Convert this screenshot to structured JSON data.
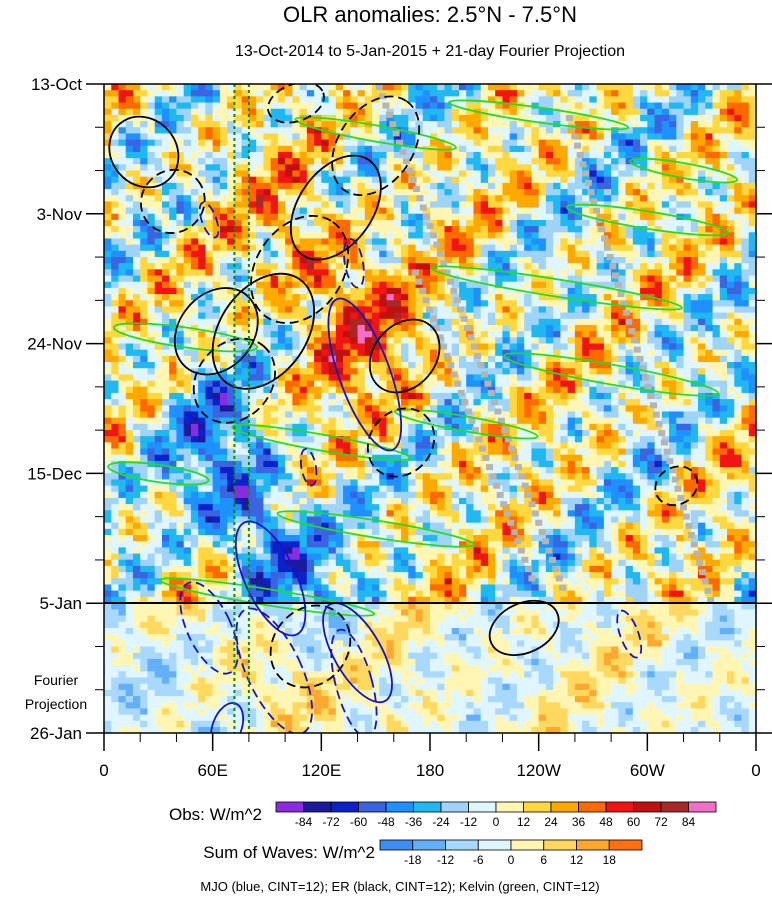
{
  "chart_data": {
    "type": "heatmap",
    "title": "OLR anomalies: 2.5°N - 7.5°N",
    "subtitle": "13-Oct-2014 to 5-Jan-2015 + 21-day Fourier Projection",
    "x_ticks": [
      "0",
      "60E",
      "120E",
      "180",
      "120W",
      "60W",
      "0"
    ],
    "x_tick_longitudes": [
      0,
      60,
      120,
      180,
      240,
      300,
      360
    ],
    "xlim": [
      0,
      360
    ],
    "y_ticks": [
      "13-Oct",
      "3-Nov",
      "24-Nov",
      "15-Dec",
      "5-Jan",
      "26-Jan"
    ],
    "y_tick_days": [
      0,
      21,
      42,
      63,
      84,
      105
    ],
    "ylim_days": [
      0,
      105
    ],
    "projection_start_day": 84,
    "projection_label_line1": "Fourier",
    "projection_label_line2": "Projection",
    "reference_longitudes": [
      72,
      80
    ],
    "obs_colorbar": {
      "label": "Obs: W/m^2",
      "levels": [
        "-84",
        "-72",
        "-60",
        "-48",
        "-36",
        "-24",
        "-12",
        "0",
        "12",
        "24",
        "36",
        "48",
        "60",
        "72",
        "84"
      ],
      "colors": [
        "#8a2be2",
        "#1a1a9a",
        "#0b21c9",
        "#3a64e0",
        "#1e90ff",
        "#1fb8f0",
        "#9fd3f7",
        "#dff5ff",
        "#fff6b4",
        "#ffd840",
        "#ffa800",
        "#ff6a00",
        "#f01414",
        "#c01010",
        "#a82828",
        "#f070c8"
      ]
    },
    "waves_colorbar": {
      "label": "Sum of Waves: W/m^2",
      "levels": [
        "-18",
        "-12",
        "-6",
        "0",
        "6",
        "12",
        "18"
      ],
      "colors": [
        "#3d8ef0",
        "#64b0f8",
        "#a8d8fb",
        "#dff5ff",
        "#fff6b4",
        "#ffd860",
        "#ffa830",
        "#ff7010"
      ]
    },
    "contour_legend": "MJO (blue, CINT=12); ER (black, CINT=12); Kelvin (green, CINT=12)",
    "contour_colors": {
      "mjo": "#1414c8",
      "er": "#000000",
      "kelvin": "#22dd22"
    },
    "mjo_contours": [
      {
        "lon": 144,
        "day": 47,
        "rlon": 14,
        "rday": 13,
        "tilt": -20,
        "dashed": false
      },
      {
        "lon": 140,
        "day": 92,
        "rlon": 13,
        "rday": 9,
        "tilt": -30,
        "dashed": false
      },
      {
        "lon": 58,
        "day": 88,
        "rlon": 12,
        "rday": 8,
        "tilt": -25,
        "dashed": true
      },
      {
        "lon": 94,
        "day": 95,
        "rlon": 15,
        "rday": 11,
        "tilt": -25,
        "dashed": true
      },
      {
        "lon": 92,
        "day": 80,
        "rlon": 14,
        "rday": 10,
        "tilt": -25,
        "dashed": false
      },
      {
        "lon": 138,
        "day": 97,
        "rlon": 10,
        "rday": 9,
        "tilt": -15,
        "dashed": true
      },
      {
        "lon": 290,
        "day": 89,
        "rlon": 5,
        "rday": 4,
        "tilt": -20,
        "dashed": true
      },
      {
        "lon": 68,
        "day": 104,
        "rlon": 8,
        "rday": 4,
        "tilt": 20,
        "dashed": false
      },
      {
        "lon": 113,
        "day": 62,
        "rlon": 4,
        "rday": 3,
        "tilt": -10,
        "dashed": true
      },
      {
        "lon": 138,
        "day": 29,
        "rlon": 5,
        "rday": 4,
        "tilt": -10,
        "dashed": true
      },
      {
        "lon": 58,
        "day": 22,
        "rlon": 4,
        "rday": 3,
        "tilt": -20,
        "dashed": true
      }
    ],
    "er_contours": [
      {
        "lon": 88,
        "day": 40,
        "rlon": 35,
        "rday": 7,
        "tilt": -55,
        "dashed": false
      },
      {
        "lon": 108,
        "day": 30,
        "rlon": 32,
        "rday": 7,
        "tilt": -55,
        "dashed": true
      },
      {
        "lon": 128,
        "day": 20,
        "rlon": 32,
        "rday": 6,
        "tilt": -55,
        "dashed": false
      },
      {
        "lon": 150,
        "day": 10,
        "rlon": 30,
        "rday": 6,
        "tilt": -55,
        "dashed": true
      },
      {
        "lon": 166,
        "day": 44,
        "rlon": 22,
        "rday": 5,
        "tilt": -50,
        "dashed": false
      },
      {
        "lon": 164,
        "day": 58,
        "rlon": 20,
        "rday": 5,
        "tilt": -50,
        "dashed": true
      },
      {
        "lon": 22,
        "day": 11,
        "rlon": 18,
        "rday": 6,
        "tilt": -40,
        "dashed": false
      },
      {
        "lon": 38,
        "day": 19,
        "rlon": 18,
        "rday": 5,
        "tilt": -40,
        "dashed": true
      },
      {
        "lon": 62,
        "day": 40,
        "rlon": 26,
        "rday": 6,
        "tilt": -50,
        "dashed": false
      },
      {
        "lon": 72,
        "day": 48,
        "rlon": 25,
        "rday": 6,
        "tilt": -50,
        "dashed": true
      },
      {
        "lon": 114,
        "day": 91,
        "rlon": 24,
        "rday": 6,
        "tilt": -50,
        "dashed": true
      },
      {
        "lon": 232,
        "day": 88,
        "rlon": 20,
        "rday": 4,
        "tilt": -25,
        "dashed": false
      },
      {
        "lon": 316,
        "day": 65,
        "rlon": 12,
        "rday": 3,
        "tilt": -30,
        "dashed": true
      },
      {
        "lon": 106,
        "day": 3,
        "rlon": 16,
        "rday": 3,
        "tilt": -20,
        "dashed": true
      }
    ],
    "kelvin_contours": [
      {
        "lon": 45,
        "day": 41,
        "rlon": 40,
        "rday": 1.6,
        "tilt": 8,
        "dashed": false
      },
      {
        "lon": 150,
        "day": 8,
        "rlon": 45,
        "rday": 1.3,
        "tilt": 10,
        "dashed": false
      },
      {
        "lon": 250,
        "day": 33,
        "rlon": 70,
        "rday": 1.4,
        "tilt": 9,
        "dashed": false
      },
      {
        "lon": 280,
        "day": 47,
        "rlon": 60,
        "rday": 1.6,
        "tilt": 10,
        "dashed": false
      },
      {
        "lon": 300,
        "day": 22,
        "rlon": 45,
        "rday": 1.4,
        "tilt": 9,
        "dashed": false
      },
      {
        "lon": 150,
        "day": 72,
        "rlon": 55,
        "rday": 1.4,
        "tilt": 9,
        "dashed": false
      },
      {
        "lon": 120,
        "day": 58,
        "rlon": 50,
        "rday": 1.3,
        "tilt": 10,
        "dashed": false
      },
      {
        "lon": 30,
        "day": 63,
        "rlon": 28,
        "rday": 1.4,
        "tilt": 8,
        "dashed": false
      },
      {
        "lon": 90,
        "day": 83,
        "rlon": 60,
        "rday": 1.3,
        "tilt": 9,
        "dashed": false
      },
      {
        "lon": 240,
        "day": 5,
        "rlon": 50,
        "rday": 1.2,
        "tilt": 8,
        "dashed": false
      },
      {
        "lon": 200,
        "day": 55,
        "rlon": 40,
        "rday": 1.2,
        "tilt": 10,
        "dashed": false
      },
      {
        "lon": 320,
        "day": 14,
        "rlon": 30,
        "rday": 1.2,
        "tilt": 10,
        "dashed": false
      }
    ]
  }
}
